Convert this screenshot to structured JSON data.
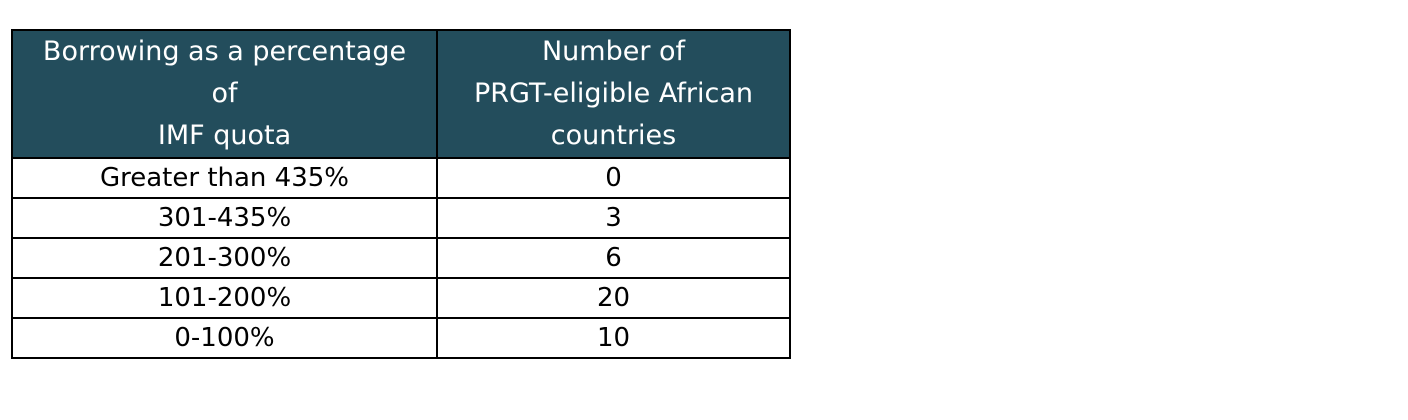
{
  "chart_data": {
    "type": "table",
    "columns": [
      [
        "Borrowing as a percentage",
        "of",
        "IMF quota"
      ],
      [
        "Number of",
        "PRGT-eligible African",
        "countries"
      ]
    ],
    "rows": [
      [
        "Greater than 435%",
        "0"
      ],
      [
        "301-435%",
        "3"
      ],
      [
        "201-300%",
        "6"
      ],
      [
        "101-200%",
        "20"
      ],
      [
        "0-100%",
        "10"
      ]
    ]
  },
  "colors": {
    "header_background": "#234d5c",
    "header_text": "#ffffff",
    "border": "#000000"
  }
}
